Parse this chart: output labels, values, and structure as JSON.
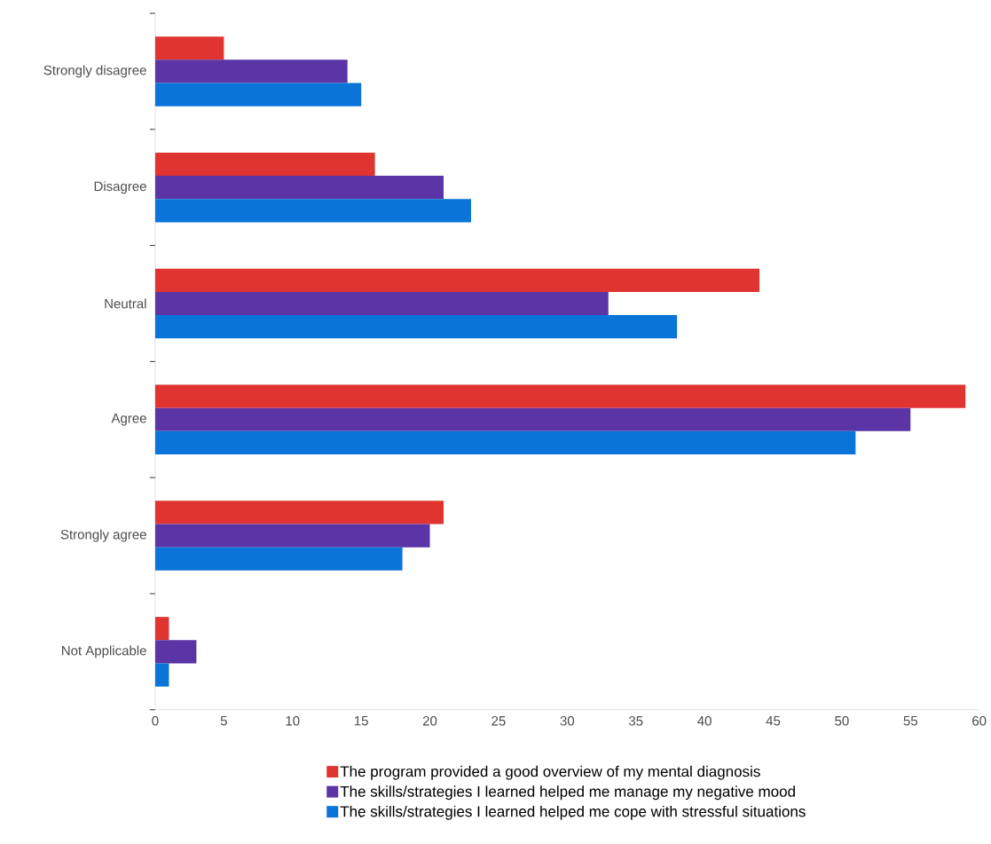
{
  "chart_data": {
    "type": "bar",
    "orientation": "horizontal",
    "categories": [
      "Strongly disagree",
      "Disagree",
      "Neutral",
      "Agree",
      "Strongly agree",
      "Not Applicable"
    ],
    "series": [
      {
        "name": "The program provided a good overview of my mental diagnosis",
        "color": "#e03431",
        "values": [
          5,
          16,
          44,
          59,
          21,
          1
        ]
      },
      {
        "name": "The skills/strategies I learned helped me manage my negative mood",
        "color": "#5b34a6",
        "values": [
          14,
          21,
          33,
          55,
          20,
          3
        ]
      },
      {
        "name": "The skills/strategies I learned helped me cope with stressful situations",
        "color": "#0a74d8",
        "values": [
          15,
          23,
          38,
          51,
          18,
          1
        ]
      }
    ],
    "xlim": [
      0,
      60
    ],
    "xticks": [
      0,
      5,
      10,
      15,
      20,
      25,
      30,
      35,
      40,
      45,
      50,
      55,
      60
    ],
    "grid": false,
    "legend": "bottom"
  }
}
